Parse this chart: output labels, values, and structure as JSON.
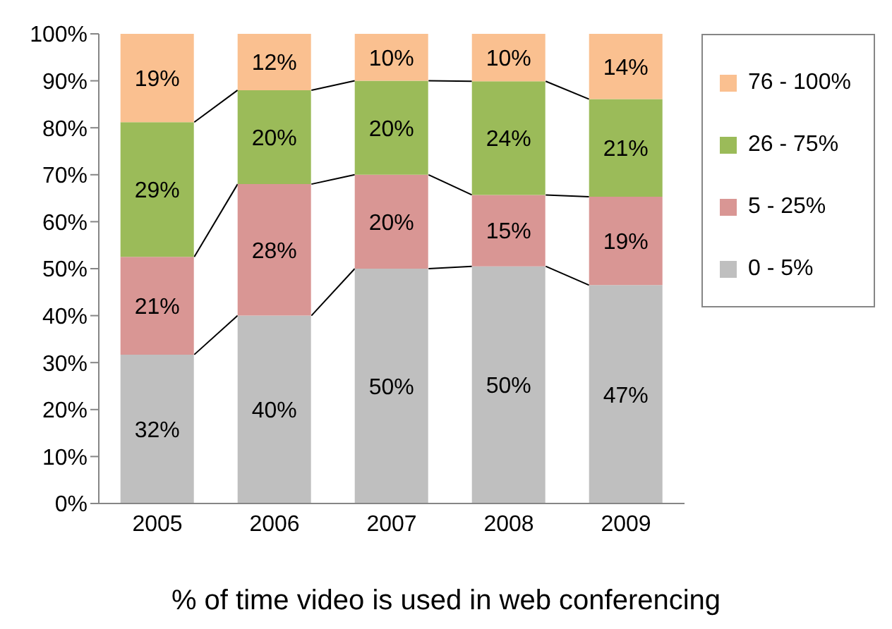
{
  "chart_data": {
    "type": "bar",
    "stacked": true,
    "xlabel": "% of time video is used in web conferencing",
    "categories": [
      "2005",
      "2006",
      "2007",
      "2008",
      "2009"
    ],
    "series": [
      {
        "name": "0 - 5%",
        "color": "#bfbfbf",
        "values": [
          31.7,
          40,
          50,
          50.5,
          46.5
        ],
        "value_labels": [
          "32%",
          "40%",
          "50%",
          "50%",
          "47%"
        ]
      },
      {
        "name": "5 - 25%",
        "color": "#d99694",
        "values": [
          20.8,
          28,
          20,
          15.2,
          18.8
        ],
        "value_labels": [
          "21%",
          "28%",
          "20%",
          "15%",
          "19%"
        ]
      },
      {
        "name": "26 - 75%",
        "color": "#9bbb59",
        "values": [
          28.7,
          20,
          20,
          24.2,
          20.8
        ],
        "value_labels": [
          "29%",
          "20%",
          "20%",
          "24%",
          "21%"
        ]
      },
      {
        "name": "76 - 100%",
        "color": "#fac090",
        "values": [
          18.8,
          12,
          10,
          10.1,
          13.9
        ],
        "value_labels": [
          "19%",
          "12%",
          "10%",
          "10%",
          "14%"
        ]
      }
    ],
    "ylim": [
      0,
      100
    ],
    "yticks": [
      {
        "value": 0,
        "label": "0%"
      },
      {
        "value": 10,
        "label": "10%"
      },
      {
        "value": 20,
        "label": "20%"
      },
      {
        "value": 30,
        "label": "30%"
      },
      {
        "value": 40,
        "label": "40%"
      },
      {
        "value": 50,
        "label": "50%"
      },
      {
        "value": 60,
        "label": "60%"
      },
      {
        "value": 70,
        "label": "70%"
      },
      {
        "value": 80,
        "label": "80%"
      },
      {
        "value": 90,
        "label": "90%"
      },
      {
        "value": 100,
        "label": "100%"
      }
    ],
    "legend": "right"
  }
}
